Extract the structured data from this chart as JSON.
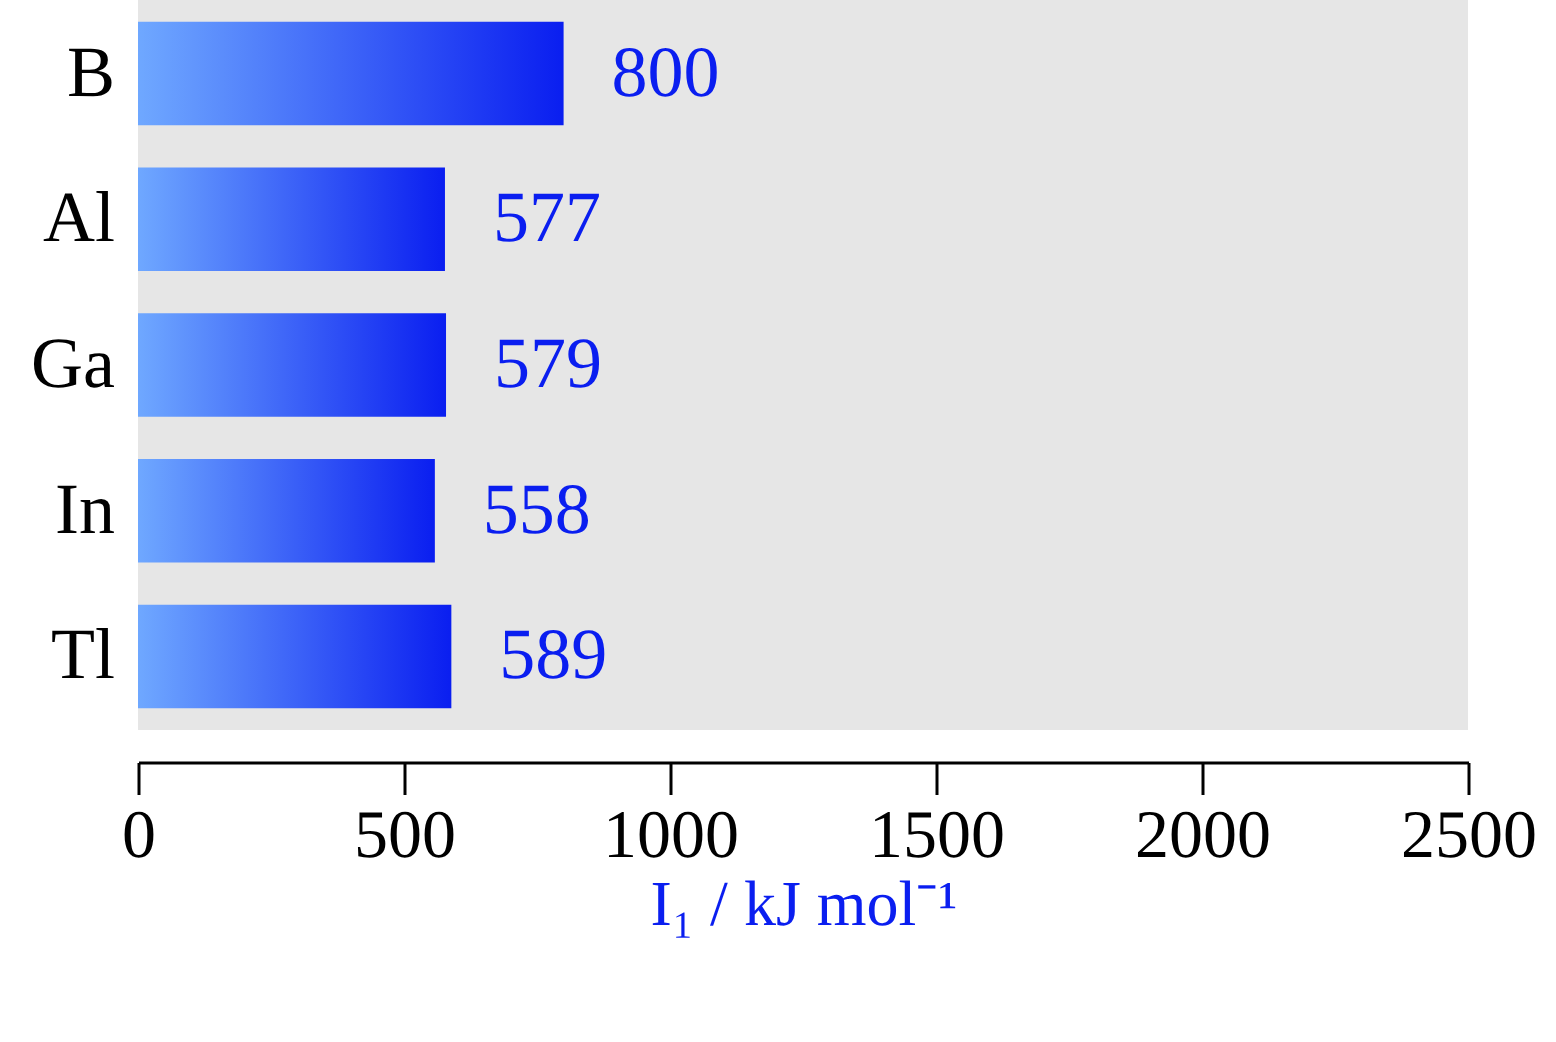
{
  "chart_data": {
    "type": "bar",
    "orientation": "horizontal",
    "categories": [
      "B",
      "Al",
      "Ga",
      "In",
      "Tl"
    ],
    "values": [
      800,
      577,
      579,
      558,
      589
    ],
    "color": "#0a1ef0",
    "data_labels": true,
    "xlabel": "I₁ / kJ mol⁻¹",
    "xlim": [
      0,
      2500
    ],
    "xticks": [
      0,
      500,
      1000,
      1500,
      2000,
      2500
    ],
    "grid": false
  }
}
